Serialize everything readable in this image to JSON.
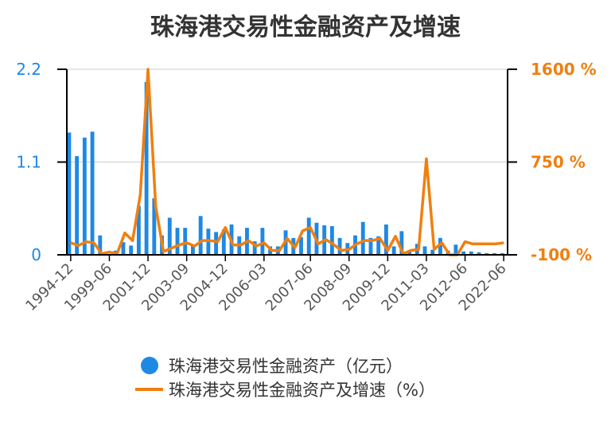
{
  "chart_data": {
    "type": "bar+line",
    "title": "珠海港交易性金融资产及增速",
    "colors": {
      "bar": "#1e88e5",
      "line": "#f07f10",
      "axis": "#000000",
      "grid": "#cccccc",
      "left_axis_text": "#1e88e5",
      "right_axis_text": "#f07f10"
    },
    "left_axis": {
      "min": 0,
      "max": 2.2,
      "ticks": [
        "0",
        "1.1",
        "2.2"
      ]
    },
    "right_axis": {
      "min": -100,
      "max": 1600,
      "ticks": [
        "-100 %",
        "750 %",
        "1600 %"
      ]
    },
    "x_tick_labels": [
      "1994-12",
      "1999-06",
      "2001-12",
      "2003-09",
      "2004-12",
      "2006-03",
      "2007-06",
      "2008-09",
      "2009-12",
      "2011-03",
      "2012-06",
      "2022-06"
    ],
    "series": [
      {
        "name": "珠海港交易性金融资产（亿元）",
        "kind": "bar",
        "values": [
          1.45,
          1.17,
          1.39,
          1.46,
          0.23,
          0.0,
          0.05,
          0.15,
          0.11,
          0.58,
          2.05,
          0.67,
          0.23,
          0.44,
          0.32,
          0.32,
          0.11,
          0.46,
          0.31,
          0.27,
          0.3,
          0.36,
          0.22,
          0.32,
          0.16,
          0.32,
          0.1,
          0.1,
          0.29,
          0.2,
          0.21,
          0.44,
          0.38,
          0.35,
          0.34,
          0.2,
          0.14,
          0.23,
          0.39,
          0.2,
          0.22,
          0.36,
          0.1,
          0.28,
          0.04,
          0.13,
          0.1,
          0.06,
          0.2,
          0.05,
          0.12,
          0.04,
          0.04,
          0.03,
          0.02,
          0.02,
          0.02
        ]
      },
      {
        "name": "珠海港交易性金融资产及增速（%）",
        "kind": "line",
        "values": [
          10,
          -15,
          20,
          10,
          -90,
          -75,
          -90,
          100,
          30,
          450,
          1600,
          340,
          -70,
          -40,
          -10,
          10,
          -20,
          30,
          30,
          20,
          150,
          -10,
          -10,
          30,
          -20,
          10,
          -60,
          -60,
          50,
          -35,
          120,
          150,
          0,
          40,
          -5,
          -60,
          -50,
          0,
          30,
          30,
          50,
          -60,
          70,
          -90,
          -60,
          -50,
          780,
          -50,
          10,
          -100,
          -100,
          20,
          0,
          0,
          0,
          0,
          10
        ]
      }
    ],
    "legend": {
      "position": "bottom"
    }
  }
}
